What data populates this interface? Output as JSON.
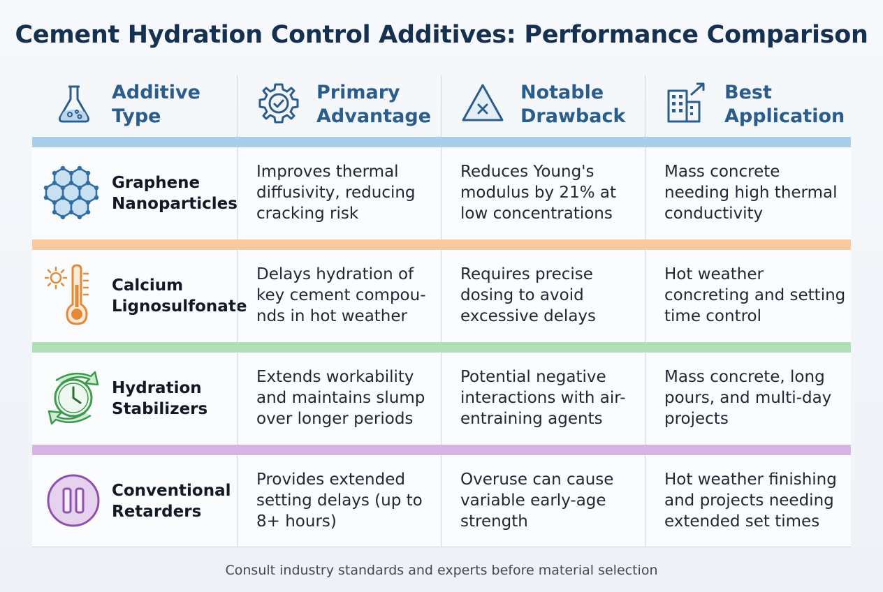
{
  "title": "Cement Hydration Control Additives: Performance Comparison",
  "headers": [
    {
      "label": "Additive Type",
      "icon": "flask-icon"
    },
    {
      "label": "Primary Advantage",
      "icon": "gear-check-icon"
    },
    {
      "label": "Notable Drawback",
      "icon": "warning-triangle-x-icon"
    },
    {
      "label": "Best Application",
      "icon": "building-growth-icon"
    }
  ],
  "colors": {
    "title": "#15314f",
    "header_text": "#2b5d8c",
    "band_header": "#a9cdea",
    "band_row1": "#f6c9a0",
    "band_row2": "#b3dfb8",
    "band_row3": "#d6b4e3"
  },
  "rows": [
    {
      "name": "Graphene Nanoparticles",
      "icon": "graphene-lattice-icon",
      "advantage": "Improves thermal diffusivity, reducing cracking risk",
      "drawback": "Reduces Young's modulus by 21% at low concentrations",
      "application": "Mass concrete needing high thermal conductivity"
    },
    {
      "name": "Calcium Lignosulfonate",
      "icon": "sun-thermometer-icon",
      "advantage": "Delays hydration of key cement compou-nds in hot weather",
      "drawback": "Requires precise dosing to avoid excessive delays",
      "application": "Hot weather concreting and setting time control"
    },
    {
      "name": "Hydration Stabilizers",
      "icon": "clock-cycle-icon",
      "advantage": "Extends workability and maintains slump over longer periods",
      "drawback": "Potential negative interactions with air-entraining agents",
      "application": "Mass concrete, long pours, and multi-day projects"
    },
    {
      "name": "Conventional Retarders",
      "icon": "pause-icon",
      "advantage": "Provides extended setting delays (up to 8+ hours)",
      "drawback": "Overuse can cause variable early-age strength",
      "application": "Hot weather finishing and projects needing extended set times"
    }
  ],
  "footer": "Consult industry standards and experts before material selection"
}
